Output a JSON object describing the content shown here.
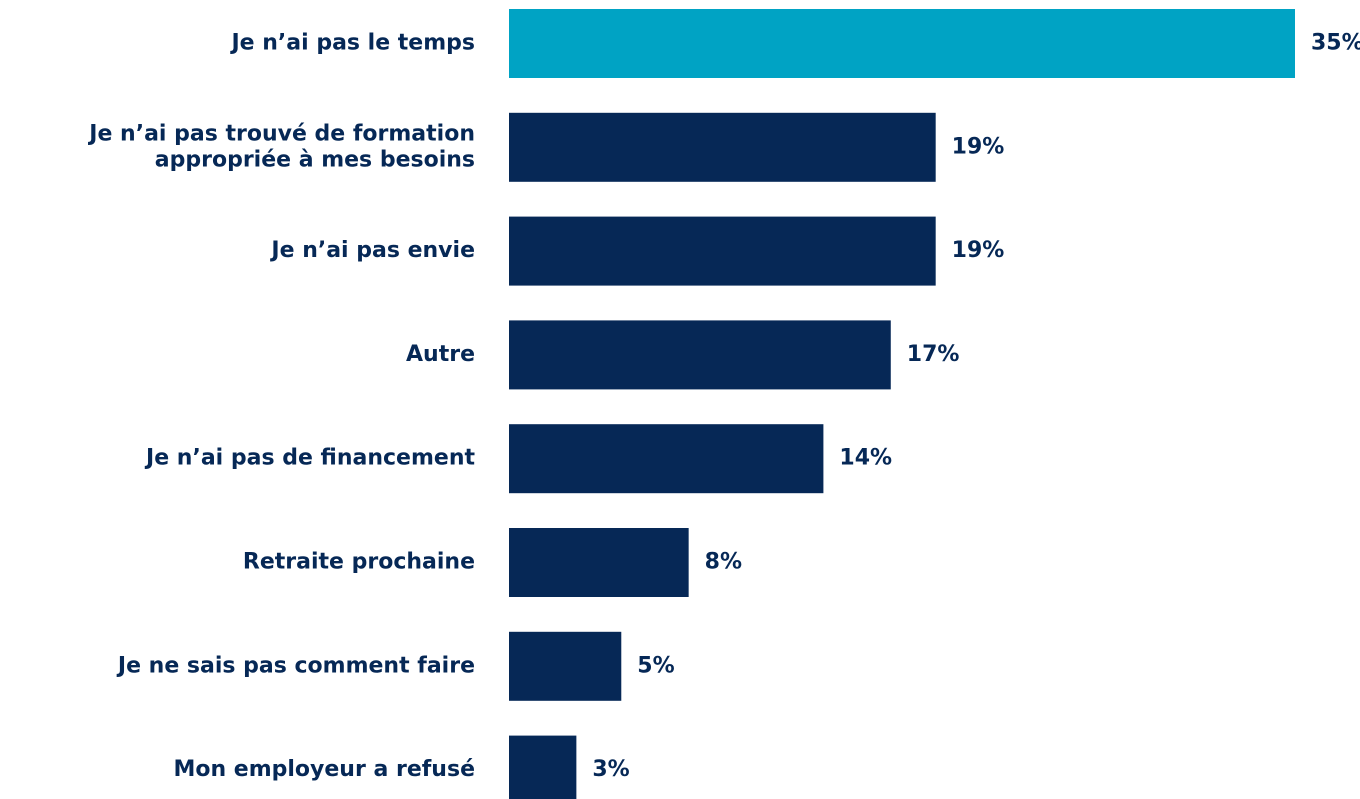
{
  "chart_data": {
    "type": "hbar",
    "categories": [
      "Je n’ai pas le temps",
      "Je n’ai pas trouvé de formation\nappropriée à mes besoins",
      "Je n’ai pas envie",
      "Autre",
      "Je n’ai pas de financement",
      "Retraite prochaine",
      "Je ne sais pas comment faire",
      "Mon employeur a refusé"
    ],
    "values": [
      35,
      19,
      19,
      17,
      14,
      8,
      5,
      3
    ],
    "value_labels": [
      "35%",
      "19%",
      "19%",
      "17%",
      "14%",
      "8%",
      "5%",
      "3%"
    ],
    "colors": [
      "#00a3c4",
      "#062856",
      "#062856",
      "#062856",
      "#062856",
      "#062856",
      "#062856",
      "#062856"
    ],
    "xlim": [
      0,
      35
    ]
  }
}
